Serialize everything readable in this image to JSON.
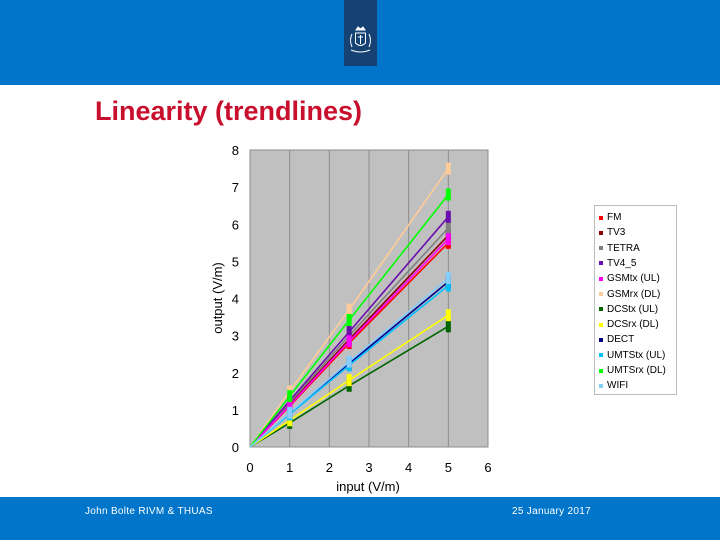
{
  "slide": {
    "title": "Linearity (trendlines)",
    "footer_left": "John Bolte RIVM & THUAS",
    "footer_right": "25 January 2017",
    "brand_color": "#0075c9",
    "title_color": "#c8102e",
    "emblem_icon": "coat-of-arms-icon"
  },
  "chart_data": {
    "type": "line",
    "title": "",
    "xlabel": "input (V/m)",
    "ylabel": "output (V/m)",
    "xlim": [
      0,
      6
    ],
    "ylim": [
      0,
      8
    ],
    "xticks": [
      0,
      1,
      2,
      3,
      4,
      5,
      6
    ],
    "yticks": [
      0,
      1,
      2,
      3,
      4,
      5,
      6,
      7,
      8
    ],
    "grid": "vertical",
    "plot_background": "#c0c0c0",
    "legend_position": "right",
    "x": [
      0,
      1,
      2.5,
      5
    ],
    "series": [
      {
        "name": "FM",
        "color": "#ff0000",
        "values": [
          0,
          1.1,
          2.8,
          5.5
        ]
      },
      {
        "name": "TV3",
        "color": "#8b0000",
        "values": [
          0,
          1.15,
          2.9,
          5.7
        ]
      },
      {
        "name": "TETRA",
        "color": "#808080",
        "values": [
          0,
          1.2,
          3.0,
          5.9
        ]
      },
      {
        "name": "TV4_5",
        "color": "#6a0dad",
        "values": [
          0,
          1.25,
          3.1,
          6.2
        ]
      },
      {
        "name": "GSMtx (UL)",
        "color": "#ff00ff",
        "values": [
          0,
          1.12,
          2.85,
          5.6
        ]
      },
      {
        "name": "GSMrx (DL)",
        "color": "#ffcc99",
        "values": [
          0,
          1.5,
          3.7,
          7.5
        ]
      },
      {
        "name": "DCStx (UL)",
        "color": "#006400",
        "values": [
          0,
          0.65,
          1.65,
          3.25
        ]
      },
      {
        "name": "DCSrx (DL)",
        "color": "#ffff00",
        "values": [
          0,
          0.72,
          1.8,
          3.55
        ]
      },
      {
        "name": "DECT",
        "color": "#00008b",
        "values": [
          0,
          0.9,
          2.25,
          4.45
        ]
      },
      {
        "name": "UMTStx (UL)",
        "color": "#00bfff",
        "values": [
          0,
          0.88,
          2.2,
          4.35
        ]
      },
      {
        "name": "UMTSrx (DL)",
        "color": "#00ff00",
        "values": [
          0,
          1.37,
          3.42,
          6.8
        ]
      },
      {
        "name": "WIFI",
        "color": "#87cefa",
        "values": [
          0,
          0.92,
          2.3,
          4.55
        ]
      }
    ]
  }
}
